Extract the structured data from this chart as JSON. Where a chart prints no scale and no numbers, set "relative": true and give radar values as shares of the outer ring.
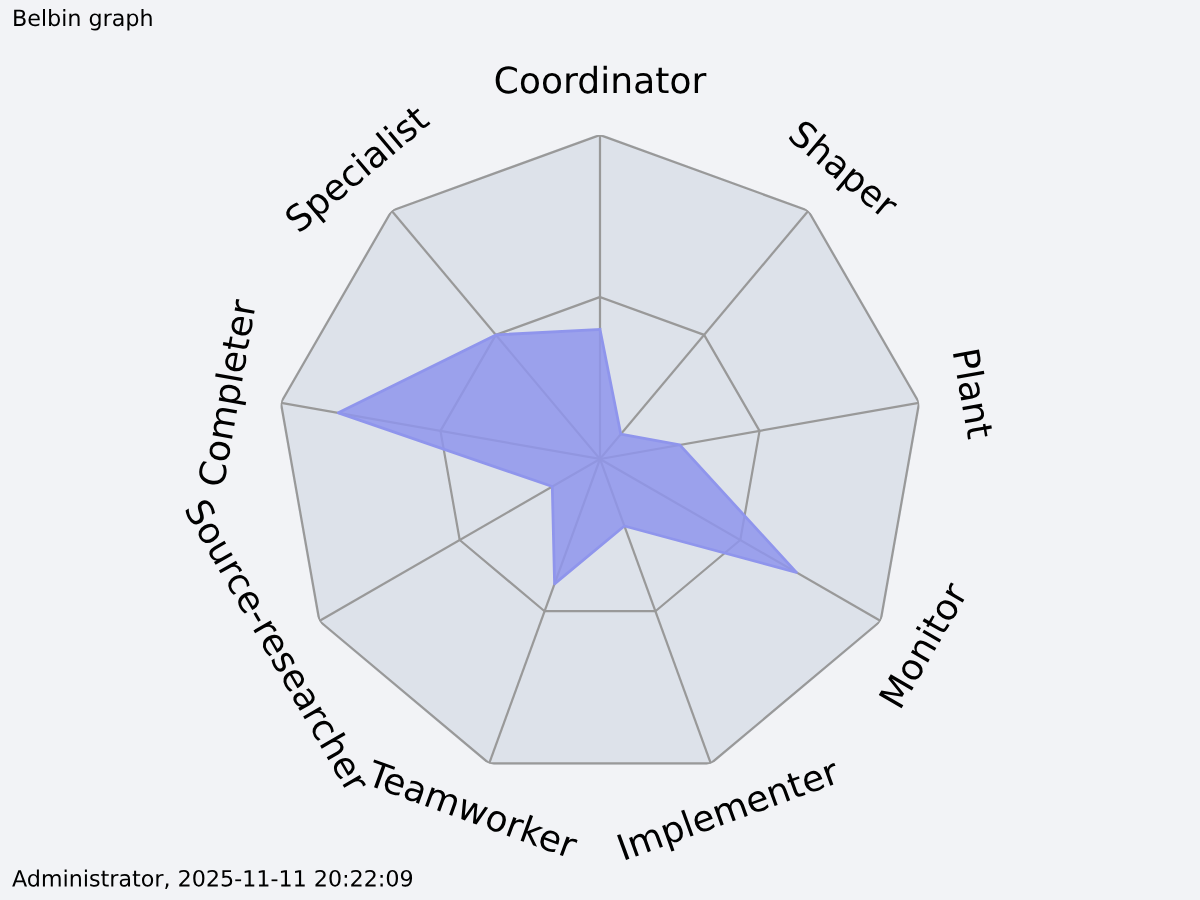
{
  "chart_data": {
    "type": "radar",
    "title": "Belbin graph",
    "relative": true,
    "grid": true,
    "categories": [
      "Coordinator",
      "Shaper",
      "Plant",
      "Monitor",
      "Implementer",
      "Teamworker",
      "Source-researcher",
      "Completer",
      "Specialist"
    ],
    "series": [
      {
        "color": "#8f95ec",
        "values": [
          0.4,
          0.1,
          0.25,
          0.7,
          0.22,
          0.41,
          0.17,
          0.82,
          0.5
        ]
      }
    ],
    "annotations": [
      "Administrator, 2025-11-11 20:22:09"
    ]
  }
}
